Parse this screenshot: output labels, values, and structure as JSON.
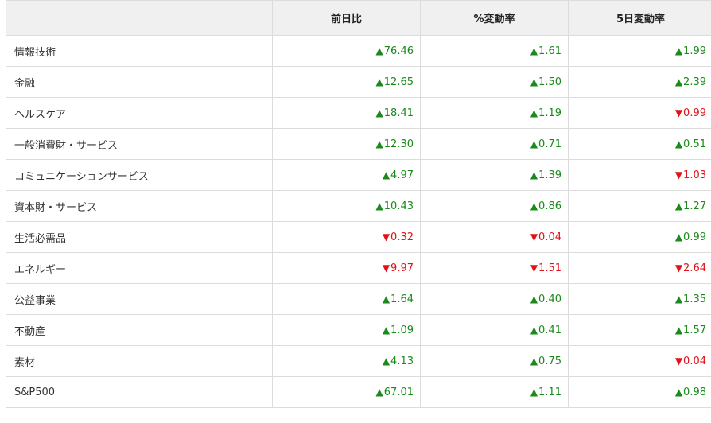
{
  "header": {
    "sector": "",
    "change": "前日比",
    "pct_change": "%変動率",
    "five_day": "5日変動率"
  },
  "colors": {
    "up": "#1a8a1a",
    "down": "#e0121a"
  },
  "rows": [
    {
      "name": "情報技術",
      "change": {
        "dir": "up",
        "value": "76.46"
      },
      "pct": {
        "dir": "up",
        "value": "1.61"
      },
      "five": {
        "dir": "up",
        "value": "1.99"
      }
    },
    {
      "name": "金融",
      "change": {
        "dir": "up",
        "value": "12.65"
      },
      "pct": {
        "dir": "up",
        "value": "1.50"
      },
      "five": {
        "dir": "up",
        "value": "2.39"
      }
    },
    {
      "name": "ヘルスケア",
      "change": {
        "dir": "up",
        "value": "18.41"
      },
      "pct": {
        "dir": "up",
        "value": "1.19"
      },
      "five": {
        "dir": "down",
        "value": "0.99"
      }
    },
    {
      "name": "一般消費財・サービス",
      "change": {
        "dir": "up",
        "value": "12.30"
      },
      "pct": {
        "dir": "up",
        "value": "0.71"
      },
      "five": {
        "dir": "up",
        "value": "0.51"
      }
    },
    {
      "name": "コミュニケーションサービス",
      "change": {
        "dir": "up",
        "value": "4.97"
      },
      "pct": {
        "dir": "up",
        "value": "1.39"
      },
      "five": {
        "dir": "down",
        "value": "1.03"
      }
    },
    {
      "name": "資本財・サービス",
      "change": {
        "dir": "up",
        "value": "10.43"
      },
      "pct": {
        "dir": "up",
        "value": "0.86"
      },
      "five": {
        "dir": "up",
        "value": "1.27"
      }
    },
    {
      "name": "生活必需品",
      "change": {
        "dir": "down",
        "value": "0.32"
      },
      "pct": {
        "dir": "down",
        "value": "0.04"
      },
      "five": {
        "dir": "up",
        "value": "0.99"
      }
    },
    {
      "name": "エネルギー",
      "change": {
        "dir": "down",
        "value": "9.97"
      },
      "pct": {
        "dir": "down",
        "value": "1.51"
      },
      "five": {
        "dir": "down",
        "value": "2.64"
      }
    },
    {
      "name": "公益事業",
      "change": {
        "dir": "up",
        "value": "1.64"
      },
      "pct": {
        "dir": "up",
        "value": "0.40"
      },
      "five": {
        "dir": "up",
        "value": "1.35"
      }
    },
    {
      "name": "不動産",
      "change": {
        "dir": "up",
        "value": "1.09"
      },
      "pct": {
        "dir": "up",
        "value": "0.41"
      },
      "five": {
        "dir": "up",
        "value": "1.57"
      }
    },
    {
      "name": "素材",
      "change": {
        "dir": "up",
        "value": "4.13"
      },
      "pct": {
        "dir": "up",
        "value": "0.75"
      },
      "five": {
        "dir": "down",
        "value": "0.04"
      }
    },
    {
      "name": "S&P500",
      "change": {
        "dir": "up",
        "value": "67.01"
      },
      "pct": {
        "dir": "up",
        "value": "1.11"
      },
      "five": {
        "dir": "up",
        "value": "0.98"
      }
    }
  ]
}
